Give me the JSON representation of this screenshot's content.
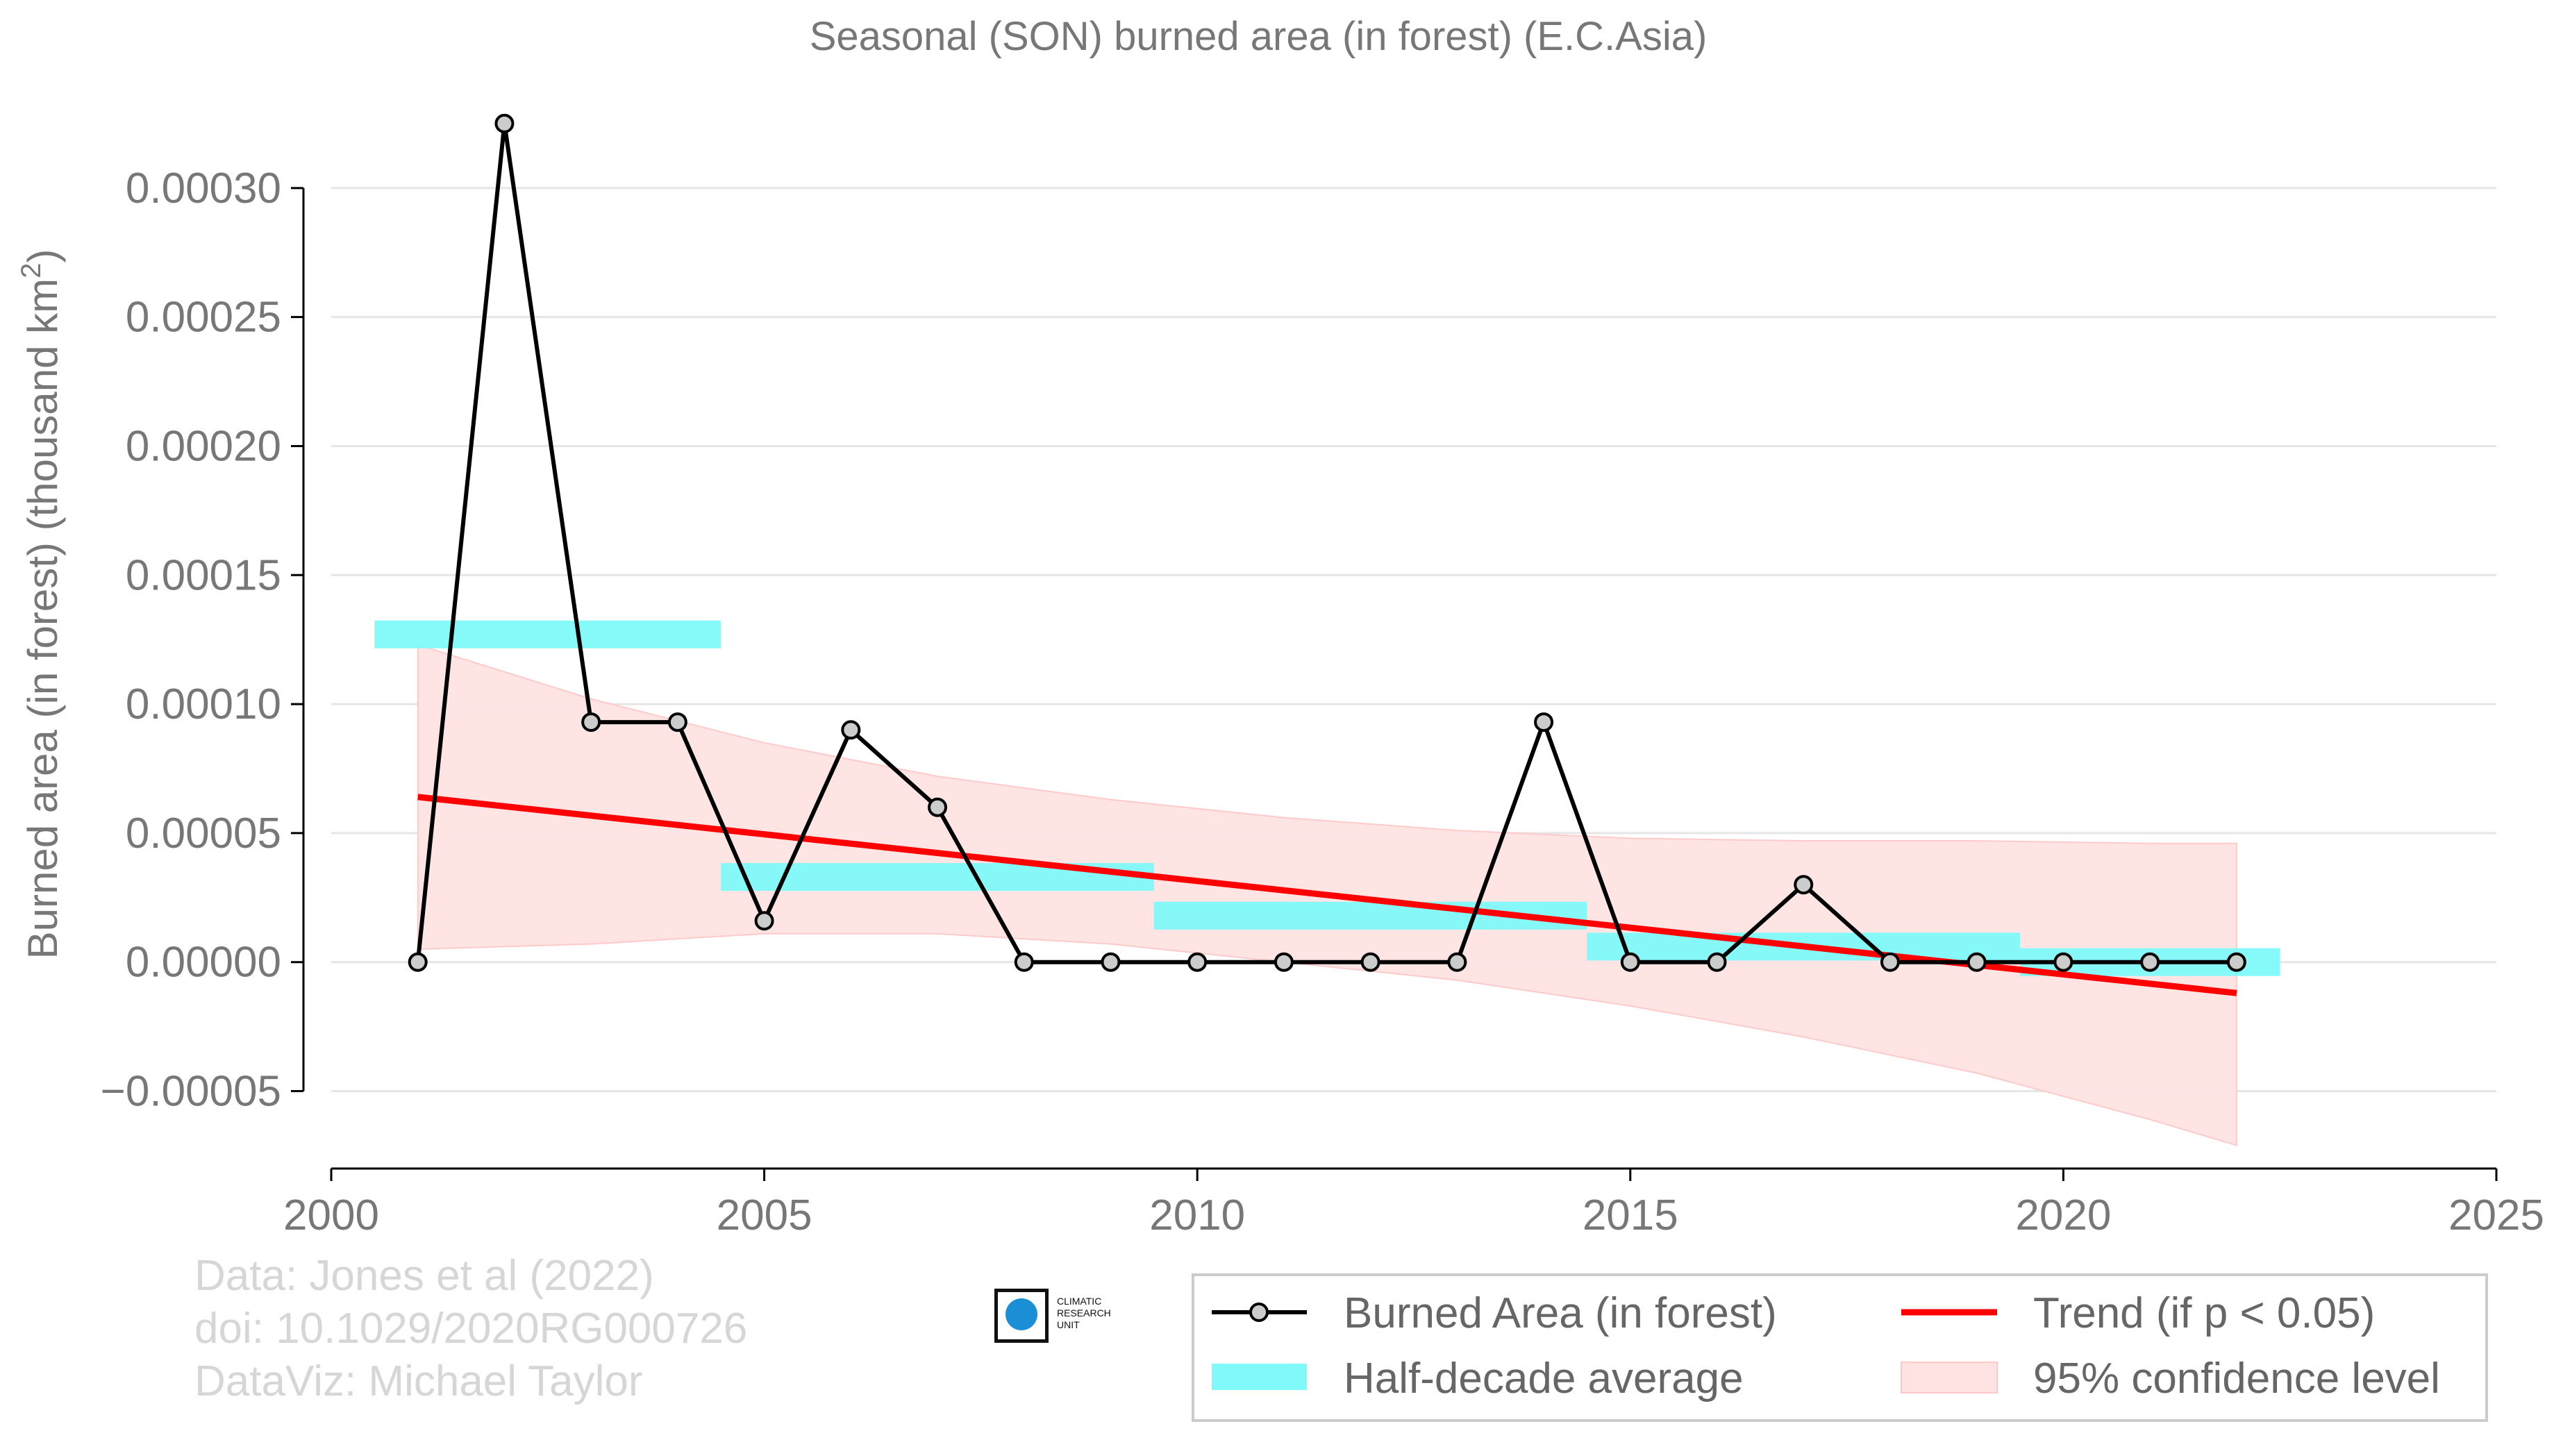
{
  "chart_data": {
    "type": "line",
    "title": "Seasonal (SON) burned area (in forest) (E.C.Asia)",
    "ylabel": "Burned area (in forest) (thousand km",
    "ylabel_sup": "2",
    "ylabel_tail": ")",
    "xlim": [
      2000,
      2025
    ],
    "ylim": [
      -8e-05,
      0.00035
    ],
    "x_ticks": [
      2000,
      2005,
      2010,
      2015,
      2020,
      2025
    ],
    "y_ticks": [
      -5e-05,
      0.0,
      5e-05,
      0.0001,
      0.00015,
      0.0002,
      0.00025,
      0.0003
    ],
    "y_tick_labels": [
      "−0.00005",
      "0.00000",
      "0.00005",
      "0.00010",
      "0.00015",
      "0.00020",
      "0.00025",
      "0.00030"
    ],
    "grid": "horizontal",
    "legend_position": "bottom-right",
    "series": [
      {
        "name": "Burned Area (in forest)",
        "color": "#000000",
        "x": [
          2001,
          2002,
          2003,
          2004,
          2005,
          2006,
          2007,
          2008,
          2009,
          2010,
          2011,
          2012,
          2013,
          2014,
          2015,
          2016,
          2017,
          2018,
          2019,
          2020,
          2021,
          2022
        ],
        "y": [
          0.0,
          0.000325,
          9.3e-05,
          9.3e-05,
          1.6e-05,
          9e-05,
          6e-05,
          0.0,
          0.0,
          0.0,
          0.0,
          0.0,
          0.0,
          9.3e-05,
          0.0,
          0.0,
          3e-05,
          0.0,
          0.0,
          0.0,
          0.0,
          0.0
        ]
      }
    ],
    "half_decade_average": {
      "name": "Half-decade average",
      "color": "#7ff9f9",
      "segments": [
        {
          "x0": 2000.5,
          "x1": 2004.5,
          "y": 0.000127
        },
        {
          "x0": 2004.5,
          "x1": 2009.5,
          "y": 3.3e-05
        },
        {
          "x0": 2009.5,
          "x1": 2014.5,
          "y": 1.8e-05
        },
        {
          "x0": 2014.5,
          "x1": 2019.5,
          "y": 6e-06
        },
        {
          "x0": 2019.5,
          "x1": 2022.5,
          "y": 0.0
        }
      ]
    },
    "trend": {
      "name": "Trend (if p < 0.05)",
      "color": "#ff0000",
      "x": [
        2001,
        2022
      ],
      "y": [
        6.4e-05,
        -1.2e-05
      ]
    },
    "confidence": {
      "name": "95% confidence level",
      "color": "#ffe3e3",
      "x": [
        2001,
        2003,
        2005,
        2007,
        2009,
        2011,
        2013,
        2015,
        2017,
        2019,
        2021,
        2022
      ],
      "upper": [
        0.000123,
        0.000102,
        8.5e-05,
        7.2e-05,
        6.3e-05,
        5.6e-05,
        5.1e-05,
        4.8e-05,
        4.7e-05,
        4.7e-05,
        4.6e-05,
        4.6e-05
      ],
      "lower": [
        5e-06,
        7e-06,
        1.1e-05,
        1.1e-05,
        7e-06,
        0.0,
        -7e-06,
        -1.7e-05,
        -2.9e-05,
        -4.3e-05,
        -6.1e-05,
        -7.1e-05
      ]
    }
  },
  "credits": {
    "line1": "Data: Jones et al (2022)",
    "line2": "doi: 10.1029/2020RG000726",
    "line3": "DataViz: Michael Taylor"
  },
  "logo": {
    "line1": "CLIMATIC",
    "line2": "RESEARCH",
    "line3": "UNIT"
  }
}
